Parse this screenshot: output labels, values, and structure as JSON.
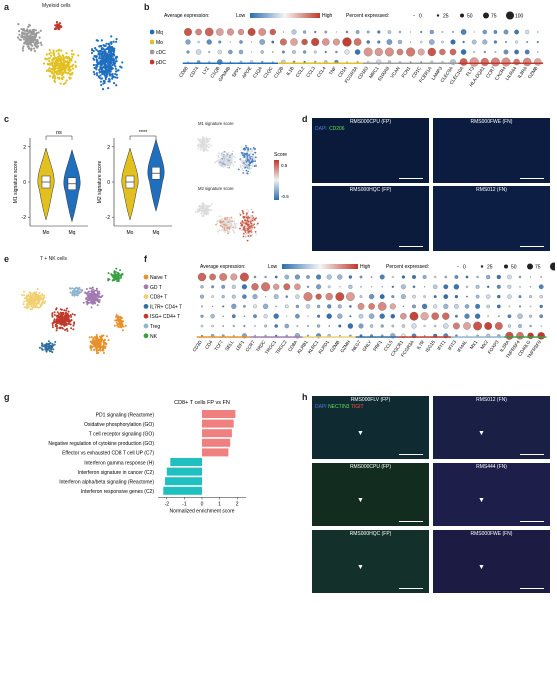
{
  "panels": {
    "a": {
      "label": "a",
      "title": "Myeloid cells"
    },
    "b": {
      "label": "b"
    },
    "c": {
      "label": "c"
    },
    "d": {
      "label": "d"
    },
    "e": {
      "label": "e",
      "title": "T + NK cells"
    },
    "f": {
      "label": "f"
    },
    "g": {
      "label": "g"
    },
    "h": {
      "label": "h"
    }
  },
  "colors": {
    "mq": "#1f6fbf",
    "mo": "#e2c020",
    "cdc": "#9a9a9a",
    "pdc": "#c0392b",
    "naive": "#e8902a",
    "gd": "#a07ab0",
    "cd8": "#f0d070",
    "il7r": "#2f6f9f",
    "isg": "#c0392b",
    "treg": "#8fb6d0",
    "nk": "#3aa040",
    "pos": "#f08080",
    "neg": "#20c0c0"
  },
  "legend_b": {
    "avg_label": "Average expression:",
    "low": "Low",
    "high": "High",
    "pct_label": "Percent expressed:",
    "pct_ticks": [
      "0",
      "25",
      "50",
      "75",
      "100"
    ]
  },
  "groups_b": [
    "Mq",
    "Mo",
    "cDC",
    "pDC"
  ],
  "genes_b": [
    "CD68",
    "CD74",
    "LYZ",
    "C1QB",
    "GPNMB",
    "SPP1",
    "APOE",
    "C1QA",
    "C1QC",
    "C1QB",
    "IL1B",
    "CCL2",
    "CCL3",
    "CCL4",
    "TNF",
    "CD14",
    "FCGR3A",
    "CD163",
    "MRC1",
    "S100A8",
    "VCAN",
    "FCN1",
    "CD1C",
    "FCER1A",
    "LAMP3",
    "CLEC9A",
    "CLEC10A",
    "FLT3",
    "HLA-DQA1",
    "CCR7",
    "CXCR4",
    "LILRA4",
    "IL3RA",
    "GZMB"
  ],
  "chart_c_violin": {
    "groups": [
      "Mo",
      "Mq"
    ],
    "m1": {
      "ylabel": "M1 signature score",
      "yticks": [
        "2",
        "0",
        "-2"
      ],
      "medians": [
        0.0,
        -0.1
      ],
      "sig": "ns"
    },
    "m2": {
      "ylabel": "M2 signature score",
      "yticks": [
        "2",
        "0",
        "-2"
      ],
      "medians": [
        0.0,
        0.5
      ],
      "sig": "****"
    }
  },
  "c_umap": {
    "m1_title": "M1 signature score",
    "m2_title": "M2 signature score",
    "score_label": "Score",
    "score_hi": "0.5",
    "score_lo": "-0.5"
  },
  "d_images": [
    {
      "title": "RMS000CPU (FP)",
      "stain": "DAPI",
      "stain2": "CD206"
    },
    {
      "title": "RMS000FWE (FN)"
    },
    {
      "title": "RMS000HQC (FP)"
    },
    {
      "title": "RMS012 (FN)"
    }
  ],
  "groups_f": [
    "Naive T",
    "GD T",
    "CD8+ T",
    "IL7R+ CD4+ T",
    "ISG+ CD4+ T",
    "Treg",
    "NK"
  ],
  "genes_f": [
    "CD3D",
    "CD4",
    "TCF7",
    "SELL",
    "LEF1",
    "CCR7",
    "TRDC",
    "TRGC1",
    "TRGC2",
    "CD8A",
    "KLRB1",
    "KLRC1",
    "KLRD1",
    "GZMB",
    "GZMH",
    "NKG7",
    "GNLY",
    "PRF1",
    "CCL5",
    "CX3CR1",
    "FCGR3A",
    "IL7R",
    "ISG15",
    "IFIT1",
    "IFIT3",
    "IFI44L",
    "MX1",
    "MX2",
    "FOXP3",
    "IL2RA",
    "TNFRSF4",
    "CD40LG",
    "TNFRSF9"
  ],
  "chart_data": {
    "type": "bar",
    "title": "CD8+ T cells FP vs FN",
    "xlabel": "Normalized enrichment score",
    "ylabel": "",
    "xlim": [
      -2.5,
      2.5
    ],
    "xticks": [
      "-2",
      "-1",
      "0",
      "1",
      "2"
    ],
    "categories": [
      "PD1 signaling (Reactome)",
      "Oxidative phosphorylation (GO)",
      "T cell receptor signaling (GO)",
      "Negative regulation of cytokine production (GO)",
      "Effector vs exhausted CD8 T cell UP (C7)",
      "Interferon gamma response (H)",
      "Interferon signature in cancer (C2)",
      "Interferon alpha/beta signaling (Reactome)",
      "Interferon responsive genes (C2)"
    ],
    "values": [
      1.9,
      1.8,
      1.7,
      1.6,
      1.5,
      -1.8,
      -2.0,
      -2.1,
      -2.2
    ]
  },
  "h_images": [
    {
      "title": "RMS000FLV (FP)",
      "stain1": "DAPI",
      "stain2": "NECTIN3",
      "stain3": "TIGIT"
    },
    {
      "title": "RMS012 (FN)"
    },
    {
      "title": "RMS000CPU (FP)"
    },
    {
      "title": "RMS444 (FN)"
    },
    {
      "title": "RMS000HQC (FP)"
    },
    {
      "title": "RMS000FWE (FN)"
    }
  ]
}
